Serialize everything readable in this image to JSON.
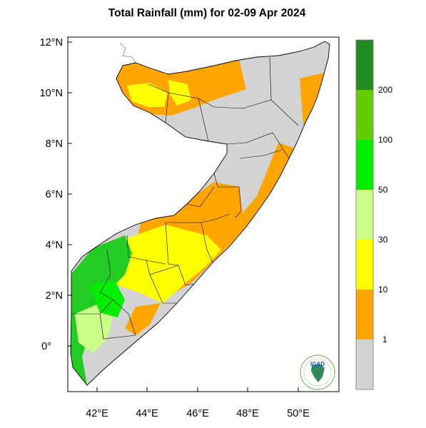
{
  "title": "Total Rainfall (mm) for 02-09 Apr 2024",
  "lat_ticks": [
    "12°N",
    "10°N",
    "8°N",
    "6°N",
    "4°N",
    "2°N",
    "0°"
  ],
  "lon_ticks": [
    "42°E",
    "44°E",
    "46°E",
    "48°E",
    "50°E"
  ],
  "legend": {
    "bins": [
      {
        "label": "1",
        "color": "#ffa500"
      },
      {
        "label": "10",
        "color": "#ffff00"
      },
      {
        "label": "30",
        "color": "#ccff88"
      },
      {
        "label": "50",
        "color": "#00ff00"
      },
      {
        "label": "100",
        "color": "#00ee00"
      },
      {
        "label": "200",
        "color": "#66cc00"
      }
    ],
    "below_min_color": "#d3d3d3",
    "top_color": "#228b22"
  },
  "logo": {
    "text": "IGAD"
  },
  "colors": {
    "land_gray": "#d3d3d3",
    "orange": "#ffa500",
    "yellow": "#ffff00",
    "light_green": "#ccff88",
    "green": "#22cc22",
    "bright_green": "#00ff00"
  }
}
